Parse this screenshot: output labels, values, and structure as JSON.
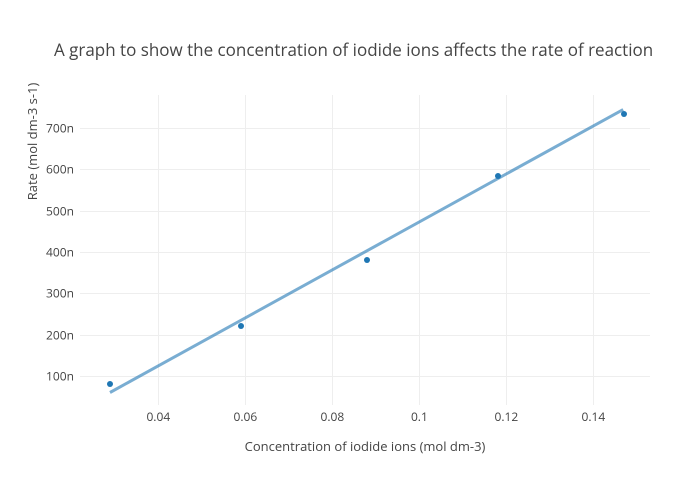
{
  "chart": {
    "type": "scatter",
    "title": "A graph to show the concentration of iodide ions affects the rate of reaction",
    "title_fontsize": 17,
    "title_color": "#444444",
    "xlabel": "Concentration of iodide ions (mol dm-3)",
    "ylabel": "Rate (mol dm-3 s-1)",
    "label_fontsize": 13,
    "label_color": "#444444",
    "tick_fontsize": 12,
    "tick_color": "#444444",
    "background_color": "#ffffff",
    "grid_color": "#eeeeee",
    "xlim": [
      0.022,
      0.153
    ],
    "ylim": [
      30,
      780
    ],
    "xticks": [
      0.04,
      0.06,
      0.08,
      0.1,
      0.12,
      0.14
    ],
    "xtick_labels": [
      "0.04",
      "0.06",
      "0.08",
      "0.1",
      "0.12",
      "0.14"
    ],
    "yticks": [
      100,
      200,
      300,
      400,
      500,
      600,
      700
    ],
    "ytick_labels": [
      "100n",
      "200n",
      "300n",
      "400n",
      "500n",
      "600n",
      "700n"
    ],
    "data_points": {
      "x": [
        0.029,
        0.059,
        0.088,
        0.118,
        0.147
      ],
      "y": [
        80,
        220,
        380,
        585,
        735
      ],
      "color": "#1f77b4",
      "marker_size": 6
    },
    "trend_line": {
      "x_start": 0.029,
      "y_start": 60,
      "x_end": 0.147,
      "y_end": 745,
      "color": "#1f77b4",
      "opacity": 0.6,
      "width": 3
    }
  }
}
